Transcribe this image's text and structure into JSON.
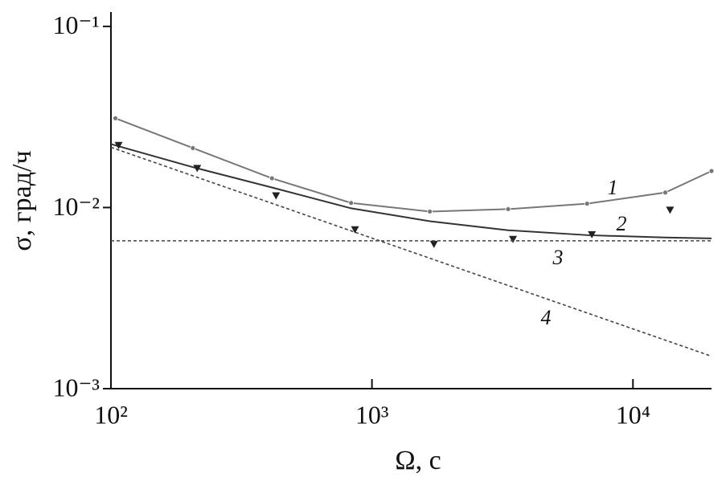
{
  "chart_data": {
    "type": "line",
    "xlabel": "Ω, с",
    "ylabel": "σ, град/ч",
    "xscale": "log",
    "yscale": "log",
    "xlim": [
      100,
      20000
    ],
    "ylim": [
      0.001,
      0.12
    ],
    "xticks": [
      {
        "value": 100,
        "label": "10²"
      },
      {
        "value": 1000,
        "label": "10³"
      },
      {
        "value": 10000,
        "label": "10⁴"
      }
    ],
    "yticks": [
      {
        "value": 0.001,
        "label": "10⁻³"
      },
      {
        "value": 0.01,
        "label": "10⁻²"
      },
      {
        "value": 0.1,
        "label": "10⁻¹"
      }
    ],
    "series": [
      {
        "name": "1",
        "color": "#777777",
        "line": "solid",
        "marker": "circle",
        "x": [
          104,
          206,
          414,
          832,
          1667,
          3325,
          6670,
          13300,
          20000
        ],
        "values": [
          0.0311,
          0.0213,
          0.0145,
          0.0106,
          0.0095,
          0.0098,
          0.0105,
          0.0121,
          0.0159
        ]
      },
      {
        "name": "2",
        "color": "#333333",
        "line": "solid",
        "x": [
          100,
          206,
          414,
          832,
          1667,
          3325,
          6670,
          13300,
          20000
        ],
        "values": [
          0.0224,
          0.0167,
          0.0129,
          0.0099,
          0.0084,
          0.00749,
          0.00704,
          0.00683,
          0.00675
        ]
      },
      {
        "color": "#222222",
        "marker": "triangle",
        "x": [
          107,
          214,
          429,
          861,
          1728,
          3470,
          6960,
          13870
        ],
        "values": [
          0.0221,
          0.0165,
          0.01164,
          0.00757,
          0.00629,
          0.00669,
          0.00711,
          0.0097
        ]
      },
      {
        "name": "3",
        "color": "#444444",
        "line": "dashed",
        "x": [
          100,
          20000
        ],
        "values": [
          0.00655,
          0.00655
        ]
      },
      {
        "name": "4",
        "color": "#444444",
        "line": "dashed",
        "x": [
          100,
          20000
        ],
        "values": [
          0.0215,
          0.00151
        ]
      }
    ]
  }
}
